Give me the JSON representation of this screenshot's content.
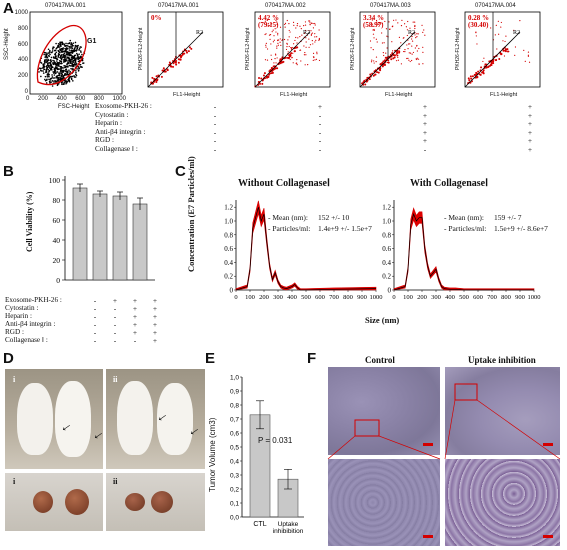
{
  "panels": {
    "A": "A",
    "B": "B",
    "C": "C",
    "D": "D",
    "E": "E",
    "F": "F"
  },
  "panelA": {
    "plots": [
      {
        "title": "070417MA.001",
        "xlabel": "FSC-Height",
        "ylabel": "SSC-Height",
        "gate": "G1",
        "xticks": [
          "0",
          "200",
          "400",
          "600",
          "800",
          "1000"
        ],
        "yticks": [
          "0",
          "200",
          "400",
          "600",
          "800",
          "1000"
        ]
      },
      {
        "title": "070417MA.001",
        "xlabel": "FL1-Height",
        "ylabel": "PKH26-FL2-Height",
        "percent": "0%",
        "count": "",
        "region": "R2"
      },
      {
        "title": "070417MA.002",
        "xlabel": "FL1-Height",
        "ylabel": "PKH26-FL2-Height",
        "percent": "4.42 %",
        "count": "(79.15)",
        "region": "R2"
      },
      {
        "title": "070417MA.003",
        "xlabel": "FL1-Height",
        "ylabel": "PKH26-FL2-Height",
        "percent": "3.34 %",
        "count": "(58.97)",
        "region": "R2"
      },
      {
        "title": "070417MA.004",
        "xlabel": "FL1-Height",
        "ylabel": "PKH26-FL2-Height",
        "percent": "0.28 %",
        "count": "(30.40)",
        "region": "R2"
      }
    ],
    "conditions": [
      "Exosome-PKH-26 :",
      "Cytostatin :",
      "Heparin :",
      "Anti-β4 integrin :",
      "RGD :",
      "Collagenase Ⅰ :"
    ],
    "columns": [
      [
        "-",
        "-",
        "-",
        "-",
        "-",
        "-"
      ],
      [
        "+",
        "-",
        "-",
        "-",
        "-",
        "-"
      ],
      [
        "+",
        "+",
        "+",
        "+",
        "+",
        "-"
      ],
      [
        "+",
        "+",
        "+",
        "+",
        "+",
        "+"
      ]
    ]
  },
  "panelB": {
    "ylabel": "Cell Viability (%)",
    "yticks": [
      "0",
      "20",
      "40",
      "60",
      "80",
      "100"
    ],
    "conditions": [
      "Exosome-PKH-26 :",
      "Cytostatin :",
      "Heparin :",
      "Anti-β4 integrin :",
      "RGD :",
      "Collagenase Ⅰ :"
    ],
    "columns": [
      [
        "-",
        "-",
        "-",
        "-",
        "-",
        "-"
      ],
      [
        "+",
        "-",
        "-",
        "-",
        "-",
        "-"
      ],
      [
        "+",
        "+",
        "+",
        "+",
        "+",
        "-"
      ],
      [
        "+",
        "+",
        "+",
        "+",
        "+",
        "+"
      ]
    ],
    "chart_data": {
      "type": "bar",
      "values": [
        92,
        86,
        84,
        76
      ],
      "errors": [
        4,
        3,
        4,
        6
      ],
      "ylim": [
        0,
        100
      ],
      "ylabel": "Cell Viability (%)"
    }
  },
  "panelC": {
    "ylabel": "Concentration (E7 Particles/ml)",
    "xlabel": "Size (nm)",
    "yticks": [
      "0",
      "0.2",
      "0.4",
      "0.6",
      "0.8",
      "1.0",
      "1.2"
    ],
    "xticks": [
      "0",
      "100",
      "200",
      "300",
      "400",
      "500",
      "600",
      "700",
      "800",
      "900",
      "1000"
    ],
    "left": {
      "title": "Without CollagenaseⅠ",
      "mean_label": "Mean (nm):",
      "mean_val": "152 +/- 10",
      "part_label": "Particles/ml:",
      "part_val": "1.4e+9 +/- 1.5e+7"
    },
    "right": {
      "title": "With CollagenaseⅠ",
      "mean_label": "Mean (nm):",
      "mean_val": "159 +/- 7",
      "part_label": "Particles/ml:",
      "part_val": "1.5e+9 +/- 8.6e+7"
    },
    "chart_data": [
      {
        "type": "line",
        "x": [
          0,
          80,
          100,
          120,
          140,
          160,
          180,
          200,
          220,
          240,
          260,
          280,
          300,
          320,
          340,
          360,
          400,
          420,
          440,
          460,
          500,
          700,
          1000
        ],
        "y": [
          0,
          0.05,
          0.3,
          0.9,
          1.05,
          1.2,
          1.0,
          1.1,
          0.7,
          0.35,
          0.15,
          0.25,
          0.12,
          0.05,
          0.03,
          0.02,
          0.05,
          0.08,
          0.03,
          0,
          0,
          0.01,
          0.02
        ]
      },
      {
        "type": "line",
        "x": [
          0,
          80,
          100,
          120,
          140,
          160,
          180,
          200,
          220,
          240,
          260,
          280,
          300,
          320,
          340,
          360,
          400,
          440,
          500,
          700,
          1000
        ],
        "y": [
          0,
          0.05,
          0.3,
          0.95,
          1.1,
          1.0,
          1.05,
          1.05,
          0.6,
          0.35,
          0.2,
          0.25,
          0.3,
          0.15,
          0.05,
          0.02,
          0.01,
          0.01,
          0,
          0,
          0
        ]
      }
    ]
  },
  "panelD": {
    "labels": [
      "i",
      "ii",
      "i",
      "ii"
    ]
  },
  "panelE": {
    "ylabel": "Tumor Volume (cm3)",
    "yticks": [
      "0,0",
      "0,1",
      "0,2",
      "0,3",
      "0,4",
      "0,5",
      "0,6",
      "0,7",
      "0,8",
      "0,9",
      "1,0"
    ],
    "categories": [
      "CTL",
      "Uptake inhibibition"
    ],
    "pvalue": "P = 0.031",
    "chart_data": {
      "type": "bar",
      "categories": [
        "CTL",
        "Uptake inhibibition"
      ],
      "values": [
        0.73,
        0.27
      ],
      "errors": [
        0.1,
        0.07
      ],
      "ylim": [
        0,
        1.0
      ],
      "ylabel": "Tumor Volume (cm3)"
    }
  },
  "panelF": {
    "control": "Control",
    "inhibition": "Uptake inhibition"
  },
  "colors": {
    "red": "#d40000",
    "bar": "#c8c8c8",
    "tissue": "#8a7fa8"
  }
}
